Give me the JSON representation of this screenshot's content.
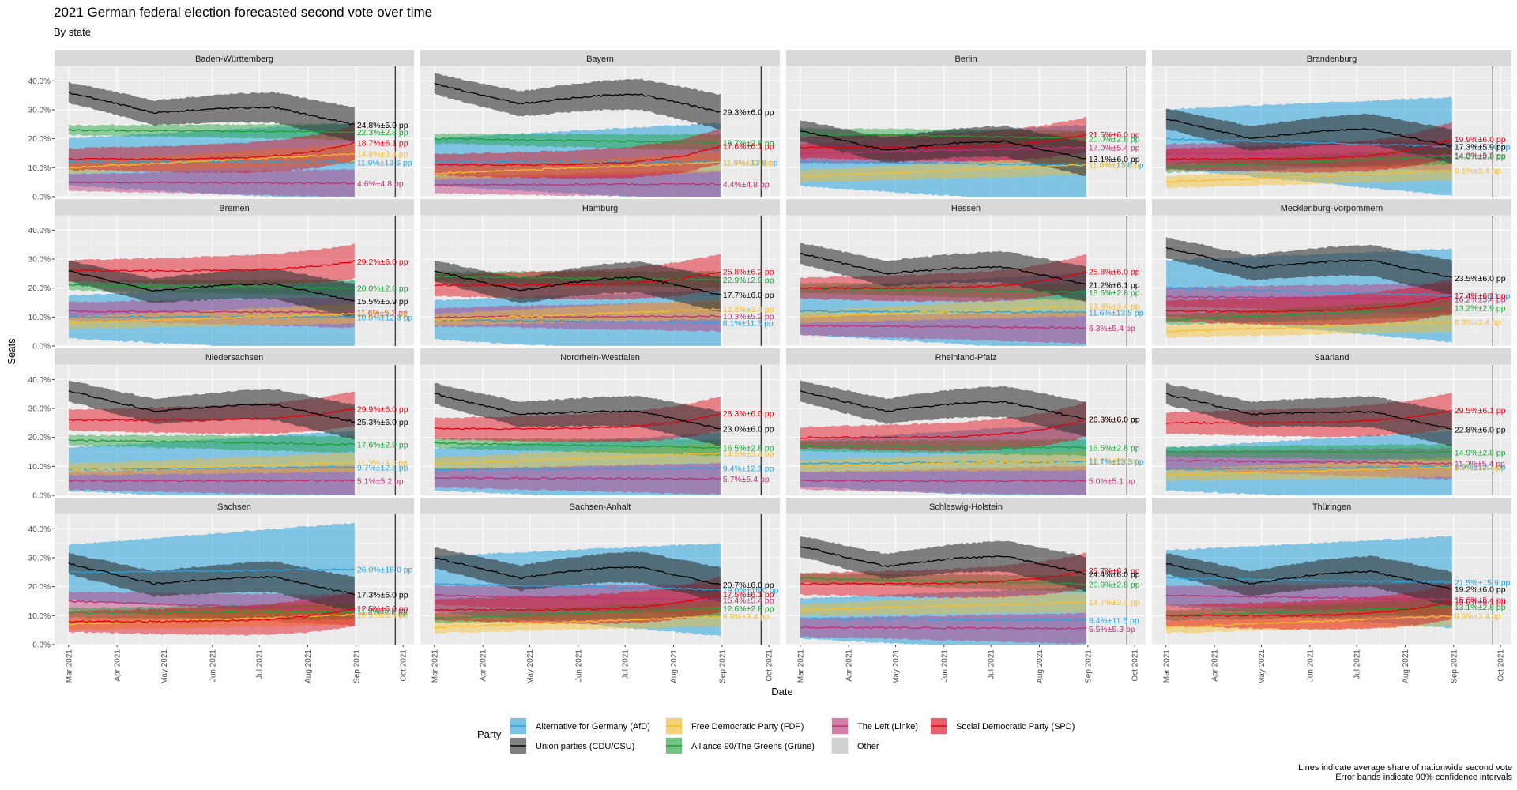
{
  "title": "2021 German federal election forecasted second vote over time",
  "subtitle": "By state",
  "caption": {
    "line1": "Lines indicate average share of nationwide second vote",
    "line2": "Error bands indicate 90% confidence intervals"
  },
  "chart_data": {
    "type": "line",
    "xlabel": "Date",
    "ylabel": "Seats",
    "ylim": [
      0,
      0.45
    ],
    "y_ticks": [
      "0.0%",
      "10.0%",
      "20.0%",
      "30.0%",
      "40.0%"
    ],
    "x_ticks": [
      "Mar 2021",
      "Apr 2021",
      "May 2021",
      "Jun 2021",
      "Jul 2021",
      "Aug 2021",
      "Sep 2021",
      "Oct 2021"
    ],
    "x_range": [
      "2021-02-20",
      "2021-10-08"
    ],
    "date_start": "2021-03-01",
    "date_end": "2021-08-31",
    "election_date": "2021-09-26",
    "grid": true,
    "legend_title": "Party",
    "legend_placement": "bottom",
    "parties": [
      {
        "key": "afd",
        "name": "Alternative for Germany (AfD)",
        "color": "#29a3dc"
      },
      {
        "key": "cdu",
        "name": "Union parties (CDU/CSU)",
        "color": "#000000",
        "band_color": "#333333"
      },
      {
        "key": "fdp",
        "name": "Free Democratic Party (FDP)",
        "color": "#f7bc29"
      },
      {
        "key": "gruene",
        "name": "Alliance 90/The Greens (Grüne)",
        "color": "#1aa037"
      },
      {
        "key": "linke",
        "name": "The Left (Linke)",
        "color": "#be3075"
      },
      {
        "key": "other",
        "name": "Other",
        "color": "#bbbbbb"
      },
      {
        "key": "spd",
        "name": "Social Democratic Party (SPD)",
        "color": "#e3000f"
      }
    ],
    "legend_order": [
      "afd",
      "cdu",
      "fdp",
      "gruene",
      "linke",
      "other",
      "spd"
    ],
    "facets": [
      {
        "state": "Baden-Württemberg",
        "series": {
          "cdu": {
            "value": 0.248,
            "ci": 0.059,
            "start": 0.36,
            "label": "24.8%±5.9 pp"
          },
          "gruene": {
            "value": 0.223,
            "ci": 0.028,
            "start": 0.23,
            "label": "22.3%±2.8 pp"
          },
          "spd": {
            "value": 0.187,
            "ci": 0.061,
            "start": 0.13,
            "label": "18.7%±6.1 pp"
          },
          "fdp": {
            "value": 0.148,
            "ci": 0.034,
            "start": 0.1,
            "label": "14.8%±3.4 pp"
          },
          "afd": {
            "value": 0.119,
            "ci": 0.136,
            "start": 0.12,
            "label": "11.9%±13.6 pp"
          },
          "linke": {
            "value": 0.046,
            "ci": 0.048,
            "start": 0.05,
            "label": "4.6%±4.8 pp"
          }
        }
      },
      {
        "state": "Bayern",
        "series": {
          "cdu": {
            "value": 0.293,
            "ci": 0.06,
            "start": 0.39,
            "label": "29.3%±6.0 pp"
          },
          "gruene": {
            "value": 0.187,
            "ci": 0.028,
            "start": 0.2,
            "label": "18.7%±2.8 pp"
          },
          "spd": {
            "value": 0.176,
            "ci": 0.061,
            "start": 0.11,
            "label": "17.6%±6.1 pp"
          },
          "fdp": {
            "value": 0.119,
            "ci": 0.034,
            "start": 0.08,
            "label": "11.9%±3.4 pp"
          },
          "afd": {
            "value": 0.119,
            "ci": 0.136,
            "start": 0.12,
            "label": "11.9%±13.6 pp"
          },
          "linke": {
            "value": 0.044,
            "ci": 0.048,
            "start": 0.04,
            "label": "4.4%±4.8 pp"
          }
        }
      },
      {
        "state": "Berlin",
        "series": {
          "spd": {
            "value": 0.215,
            "ci": 0.06,
            "start": 0.17,
            "label": "21.5%±6.0 pp"
          },
          "gruene": {
            "value": 0.2,
            "ci": 0.028,
            "start": 0.22,
            "label": "20.0%±2.8 pp"
          },
          "linke": {
            "value": 0.17,
            "ci": 0.054,
            "start": 0.15,
            "label": "17.0%±5.4 pp"
          },
          "cdu": {
            "value": 0.131,
            "ci": 0.06,
            "start": 0.23,
            "label": "13.1%±6.0 pp"
          },
          "afd": {
            "value": 0.11,
            "ci": 0.138,
            "start": 0.12,
            "label": "11.0%±13.8 pp"
          },
          "fdp": {
            "value": 0.11,
            "ci": 0.034,
            "start": 0.07,
            "label": "11.0%±3.4 pp"
          }
        }
      },
      {
        "state": "Brandenburg",
        "series": {
          "spd": {
            "value": 0.199,
            "ci": 0.06,
            "start": 0.13,
            "label": "19.9%±6.0 pp"
          },
          "cdu": {
            "value": 0.173,
            "ci": 0.059,
            "start": 0.27,
            "label": "17.3%±5.9 pp"
          },
          "afd": {
            "value": 0.173,
            "ci": 0.17,
            "start": 0.2,
            "label": "17.3%±17.0 pp"
          },
          "linke": {
            "value": 0.143,
            "ci": 0.053,
            "start": 0.15,
            "label": "14.3%±5.3 pp"
          },
          "gruene": {
            "value": 0.14,
            "ci": 0.028,
            "start": 0.1,
            "label": "14.0%±2.8 pp"
          },
          "fdp": {
            "value": 0.091,
            "ci": 0.034,
            "start": 0.05,
            "label": "9.1%±3.4 pp"
          }
        }
      },
      {
        "state": "Bremen",
        "series": {
          "spd": {
            "value": 0.292,
            "ci": 0.06,
            "start": 0.26,
            "label": "29.2%±6.0 pp"
          },
          "gruene": {
            "value": 0.2,
            "ci": 0.028,
            "start": 0.21,
            "label": "20.0%±2.8 pp"
          },
          "cdu": {
            "value": 0.155,
            "ci": 0.059,
            "start": 0.26,
            "label": "15.5%±5.9 pp"
          },
          "linke": {
            "value": 0.116,
            "ci": 0.053,
            "start": 0.12,
            "label": "11.6%±5.3 pp"
          },
          "fdp": {
            "value": 0.112,
            "ci": 0.034,
            "start": 0.08,
            "label": "11.2%±3.4 pp"
          },
          "afd": {
            "value": 0.1,
            "ci": 0.123,
            "start": 0.1,
            "label": "10.0%±12.3 pp"
          }
        }
      },
      {
        "state": "Hamburg",
        "series": {
          "spd": {
            "value": 0.258,
            "ci": 0.062,
            "start": 0.21,
            "label": "25.8%±6.2 pp"
          },
          "gruene": {
            "value": 0.229,
            "ci": 0.029,
            "start": 0.24,
            "label": "22.9%±2.9 pp"
          },
          "cdu": {
            "value": 0.177,
            "ci": 0.06,
            "start": 0.26,
            "label": "17.7%±6.0 pp"
          },
          "fdp": {
            "value": 0.128,
            "ci": 0.034,
            "start": 0.09,
            "label": "12.8%±3.4 pp"
          },
          "linke": {
            "value": 0.103,
            "ci": 0.052,
            "start": 0.1,
            "label": "10.3%±5.2 pp"
          },
          "afd": {
            "value": 0.081,
            "ci": 0.113,
            "start": 0.09,
            "label": "8.1%±11.3 pp"
          }
        }
      },
      {
        "state": "Hessen",
        "series": {
          "spd": {
            "value": 0.258,
            "ci": 0.06,
            "start": 0.2,
            "label": "25.8%±6.0 pp"
          },
          "cdu": {
            "value": 0.212,
            "ci": 0.061,
            "start": 0.32,
            "label": "21.2%±6.1 pp"
          },
          "gruene": {
            "value": 0.186,
            "ci": 0.028,
            "start": 0.2,
            "label": "18.6%±2.8 pp"
          },
          "fdp": {
            "value": 0.138,
            "ci": 0.034,
            "start": 0.1,
            "label": "13.8%±3.4 pp"
          },
          "afd": {
            "value": 0.116,
            "ci": 0.135,
            "start": 0.12,
            "label": "11.6%±13.5 pp"
          },
          "linke": {
            "value": 0.063,
            "ci": 0.054,
            "start": 0.07,
            "label": "6.3%±5.4 pp"
          }
        }
      },
      {
        "state": "Mecklenburg-Vorpommern",
        "series": {
          "cdu": {
            "value": 0.235,
            "ci": 0.06,
            "start": 0.34,
            "label": "23.5%±6.0 pp"
          },
          "afd": {
            "value": 0.174,
            "ci": 0.161,
            "start": 0.2,
            "label": "17.4%±16.1 pp"
          },
          "spd": {
            "value": 0.174,
            "ci": 0.061,
            "start": 0.12,
            "label": "17.4%±6.1 pp"
          },
          "linke": {
            "value": 0.162,
            "ci": 0.054,
            "start": 0.17,
            "label": "16.2%±5.4 pp"
          },
          "gruene": {
            "value": 0.132,
            "ci": 0.029,
            "start": 0.09,
            "label": "13.2%±2.9 pp"
          },
          "fdp": {
            "value": 0.083,
            "ci": 0.034,
            "start": 0.05,
            "label": "8.3%±3.4 pp"
          }
        }
      },
      {
        "state": "Niedersachsen",
        "series": {
          "spd": {
            "value": 0.299,
            "ci": 0.06,
            "start": 0.26,
            "label": "29.9%±6.0 pp"
          },
          "cdu": {
            "value": 0.253,
            "ci": 0.06,
            "start": 0.36,
            "label": "25.3%±6.0 pp"
          },
          "gruene": {
            "value": 0.176,
            "ci": 0.029,
            "start": 0.19,
            "label": "17.6%±2.9 pp"
          },
          "fdp": {
            "value": 0.113,
            "ci": 0.033,
            "start": 0.09,
            "label": "11.3%±3.3 pp"
          },
          "afd": {
            "value": 0.097,
            "ci": 0.125,
            "start": 0.09,
            "label": "9.7%±12.5 pp"
          },
          "linke": {
            "value": 0.051,
            "ci": 0.052,
            "start": 0.05,
            "label": "5.1%±5.2 pp"
          }
        }
      },
      {
        "state": "Nordrhein-Westfalen",
        "series": {
          "spd": {
            "value": 0.283,
            "ci": 0.06,
            "start": 0.23,
            "label": "28.3%±6.0 pp"
          },
          "cdu": {
            "value": 0.23,
            "ci": 0.06,
            "start": 0.35,
            "label": "23.0%±6.0 pp"
          },
          "gruene": {
            "value": 0.165,
            "ci": 0.028,
            "start": 0.18,
            "label": "16.5%±2.8 pp"
          },
          "fdp": {
            "value": 0.145,
            "ci": 0.034,
            "start": 0.11,
            "label": "14.5%±3.4 pp"
          },
          "afd": {
            "value": 0.094,
            "ci": 0.121,
            "start": 0.09,
            "label": "9.4%±12.1 pp"
          },
          "linke": {
            "value": 0.057,
            "ci": 0.054,
            "start": 0.06,
            "label": "5.7%±5.4 pp"
          }
        }
      },
      {
        "state": "Rheinland-Pfalz",
        "series": {
          "spd": {
            "value": 0.263,
            "ci": 0.06,
            "start": 0.2,
            "label": "26.3%±6.0 pp"
          },
          "cdu": {
            "value": 0.263,
            "ci": 0.06,
            "start": 0.36,
            "label": "26.3%±6.0 pp"
          },
          "gruene": {
            "value": 0.165,
            "ci": 0.028,
            "start": 0.17,
            "label": "16.5%±2.8 pp"
          },
          "fdp": {
            "value": 0.121,
            "ci": 0.034,
            "start": 0.1,
            "label": "12.1%±3.4 pp"
          },
          "afd": {
            "value": 0.117,
            "ci": 0.133,
            "start": 0.11,
            "label": "11.7%±13.3 pp"
          },
          "linke": {
            "value": 0.05,
            "ci": 0.051,
            "start": 0.05,
            "label": "5.0%±5.1 pp"
          }
        }
      },
      {
        "state": "Saarland",
        "series": {
          "spd": {
            "value": 0.295,
            "ci": 0.061,
            "start": 0.25,
            "label": "29.5%±6.1 pp"
          },
          "cdu": {
            "value": 0.228,
            "ci": 0.06,
            "start": 0.35,
            "label": "22.8%±6.0 pp"
          },
          "gruene": {
            "value": 0.149,
            "ci": 0.028,
            "start": 0.15,
            "label": "14.9%±2.8 pp"
          },
          "linke": {
            "value": 0.11,
            "ci": 0.054,
            "start": 0.12,
            "label": "11.0%±5.4 pp"
          },
          "afd": {
            "value": 0.099,
            "ci": 0.123,
            "start": 0.09,
            "label": "9.9%±12.3 pp"
          },
          "fdp": {
            "value": 0.097,
            "ci": 0.034,
            "start": 0.07,
            "label": "9.7%±3.4 pp"
          }
        }
      },
      {
        "state": "Sachsen",
        "series": {
          "afd": {
            "value": 0.26,
            "ci": 0.16,
            "start": 0.25,
            "label": "26.0%±16.0 pp"
          },
          "cdu": {
            "value": 0.173,
            "ci": 0.06,
            "start": 0.28,
            "label": "17.3%±6.0 pp"
          },
          "spd": {
            "value": 0.125,
            "ci": 0.06,
            "start": 0.08,
            "label": "12.5%±6.0 pp"
          },
          "linke": {
            "value": 0.119,
            "ci": 0.053,
            "start": 0.15,
            "label": "11.9%±5.3 pp"
          },
          "gruene": {
            "value": 0.113,
            "ci": 0.028,
            "start": 0.11,
            "label": "11.3%±2.8 pp"
          },
          "fdp": {
            "value": 0.103,
            "ci": 0.034,
            "start": 0.07,
            "label": "10.3%±3.4 pp"
          }
        }
      },
      {
        "state": "Sachsen-Anhalt",
        "series": {
          "cdu": {
            "value": 0.207,
            "ci": 0.06,
            "start": 0.3,
            "label": "20.7%±6.0 pp"
          },
          "afd": {
            "value": 0.19,
            "ci": 0.16,
            "start": 0.21,
            "label": "19.0%±16.0 pp"
          },
          "spd": {
            "value": 0.175,
            "ci": 0.061,
            "start": 0.12,
            "label": "17.5%±6.1 pp"
          },
          "linke": {
            "value": 0.154,
            "ci": 0.054,
            "start": 0.17,
            "label": "15.4%±5.4 pp"
          },
          "gruene": {
            "value": 0.126,
            "ci": 0.028,
            "start": 0.09,
            "label": "12.6%±2.8 pp"
          },
          "fdp": {
            "value": 0.098,
            "ci": 0.034,
            "start": 0.06,
            "label": "9.8%±3.4 pp"
          }
        }
      },
      {
        "state": "Schleswig-Holstein",
        "series": {
          "spd": {
            "value": 0.257,
            "ci": 0.061,
            "start": 0.21,
            "label": "25.7%±6.1 pp"
          },
          "cdu": {
            "value": 0.244,
            "ci": 0.06,
            "start": 0.34,
            "label": "24.4%±6.0 pp"
          },
          "gruene": {
            "value": 0.209,
            "ci": 0.028,
            "start": 0.23,
            "label": "20.9%±2.8 pp"
          },
          "fdp": {
            "value": 0.147,
            "ci": 0.034,
            "start": 0.12,
            "label": "14.7%±3.4 pp"
          },
          "afd": {
            "value": 0.084,
            "ci": 0.115,
            "start": 0.09,
            "label": "8.4%±11.5 pp"
          },
          "linke": {
            "value": 0.055,
            "ci": 0.053,
            "start": 0.06,
            "label": "5.5%±5.3 pp"
          }
        }
      },
      {
        "state": "Thüringen",
        "series": {
          "afd": {
            "value": 0.215,
            "ci": 0.159,
            "start": 0.23,
            "label": "21.5%±15.9 pp"
          },
          "cdu": {
            "value": 0.192,
            "ci": 0.06,
            "start": 0.28,
            "label": "19.2%±6.0 pp"
          },
          "linke": {
            "value": 0.156,
            "ci": 0.054,
            "start": 0.17,
            "label": "15.6%±5.4 pp"
          },
          "spd": {
            "value": 0.15,
            "ci": 0.061,
            "start": 0.1,
            "label": "15.0%±6.1 pp"
          },
          "gruene": {
            "value": 0.131,
            "ci": 0.028,
            "start": 0.1,
            "label": "13.1%±2.8 pp"
          },
          "fdp": {
            "value": 0.099,
            "ci": 0.034,
            "start": 0.06,
            "label": "9.9%±3.4 pp"
          }
        }
      }
    ]
  }
}
